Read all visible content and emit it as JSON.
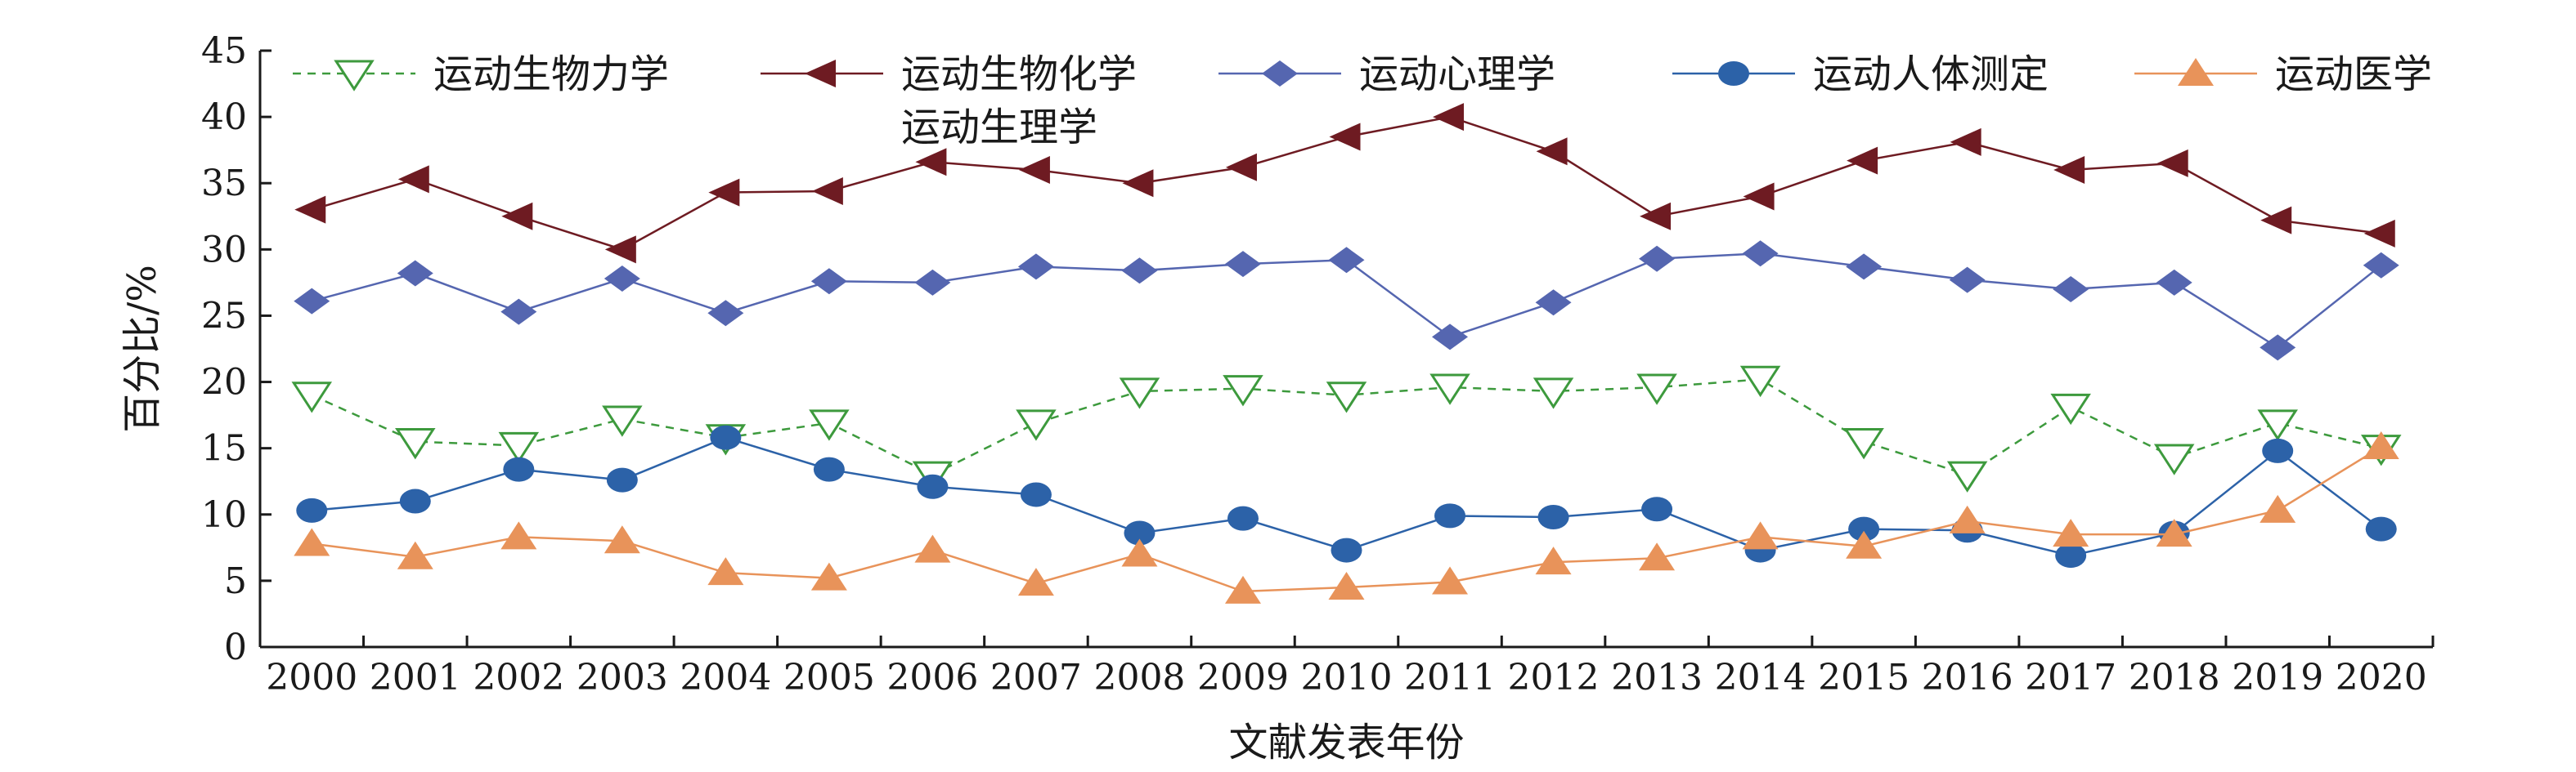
{
  "chart_data": {
    "type": "line",
    "xlabel": "文献发表年份",
    "ylabel": "百分比/%",
    "ylim": [
      0,
      45
    ],
    "yticks": [
      0,
      5,
      10,
      15,
      20,
      25,
      30,
      35,
      40,
      45
    ],
    "categories": [
      "2000",
      "2001",
      "2002",
      "2003",
      "2004",
      "2005",
      "2006",
      "2007",
      "2008",
      "2009",
      "2010",
      "2011",
      "2012",
      "2013",
      "2014",
      "2015",
      "2016",
      "2017",
      "2018",
      "2019",
      "2020"
    ],
    "grid": false,
    "legend_position": "top",
    "series": [
      {
        "name": "运动生物力学",
        "color": "#3d9a3d",
        "dashed": true,
        "marker": "triangle-down-open",
        "values": [
          19.0,
          15.5,
          15.2,
          17.2,
          15.8,
          16.9,
          13.0,
          16.9,
          19.3,
          19.5,
          19.0,
          19.6,
          19.3,
          19.6,
          20.2,
          15.5,
          13.0,
          18.1,
          14.3,
          16.9,
          15.0
        ]
      },
      {
        "name": "运动生物化学",
        "color": "#6e1b22",
        "dashed": false,
        "marker": "triangle-left",
        "values": [
          33.0,
          35.3,
          32.5,
          30.0,
          34.3,
          34.4,
          36.6,
          36.0,
          35.0,
          36.2,
          38.5,
          40.0,
          37.4,
          32.5,
          34.0,
          36.7,
          38.1,
          36.0,
          36.5,
          32.2,
          31.2
        ]
      },
      {
        "name": "运动心理学",
        "color": "#5566b0",
        "dashed": false,
        "marker": "diamond",
        "values": [
          26.1,
          28.2,
          25.3,
          27.8,
          25.2,
          27.6,
          27.5,
          28.7,
          28.4,
          28.9,
          29.2,
          23.4,
          26.0,
          29.3,
          29.7,
          28.7,
          27.7,
          27.0,
          27.5,
          22.6,
          28.8
        ]
      },
      {
        "name": "运动人体测定",
        "color": "#2c62a8",
        "dashed": false,
        "marker": "circle",
        "values": [
          10.3,
          11.0,
          13.4,
          12.6,
          15.8,
          13.4,
          12.1,
          11.5,
          8.6,
          9.7,
          7.3,
          9.9,
          9.8,
          10.4,
          7.3,
          8.9,
          8.8,
          6.9,
          8.6,
          14.8,
          8.9
        ]
      },
      {
        "name": "运动医学",
        "color": "#e8935a",
        "dashed": false,
        "marker": "triangle-up",
        "values": [
          7.8,
          6.8,
          8.3,
          8.0,
          5.6,
          5.2,
          7.3,
          4.8,
          7.0,
          4.2,
          4.5,
          4.9,
          6.4,
          6.7,
          8.3,
          7.6,
          9.5,
          8.5,
          8.5,
          10.3,
          15.1
        ]
      }
    ],
    "annotations": [
      "运动生理学"
    ]
  }
}
